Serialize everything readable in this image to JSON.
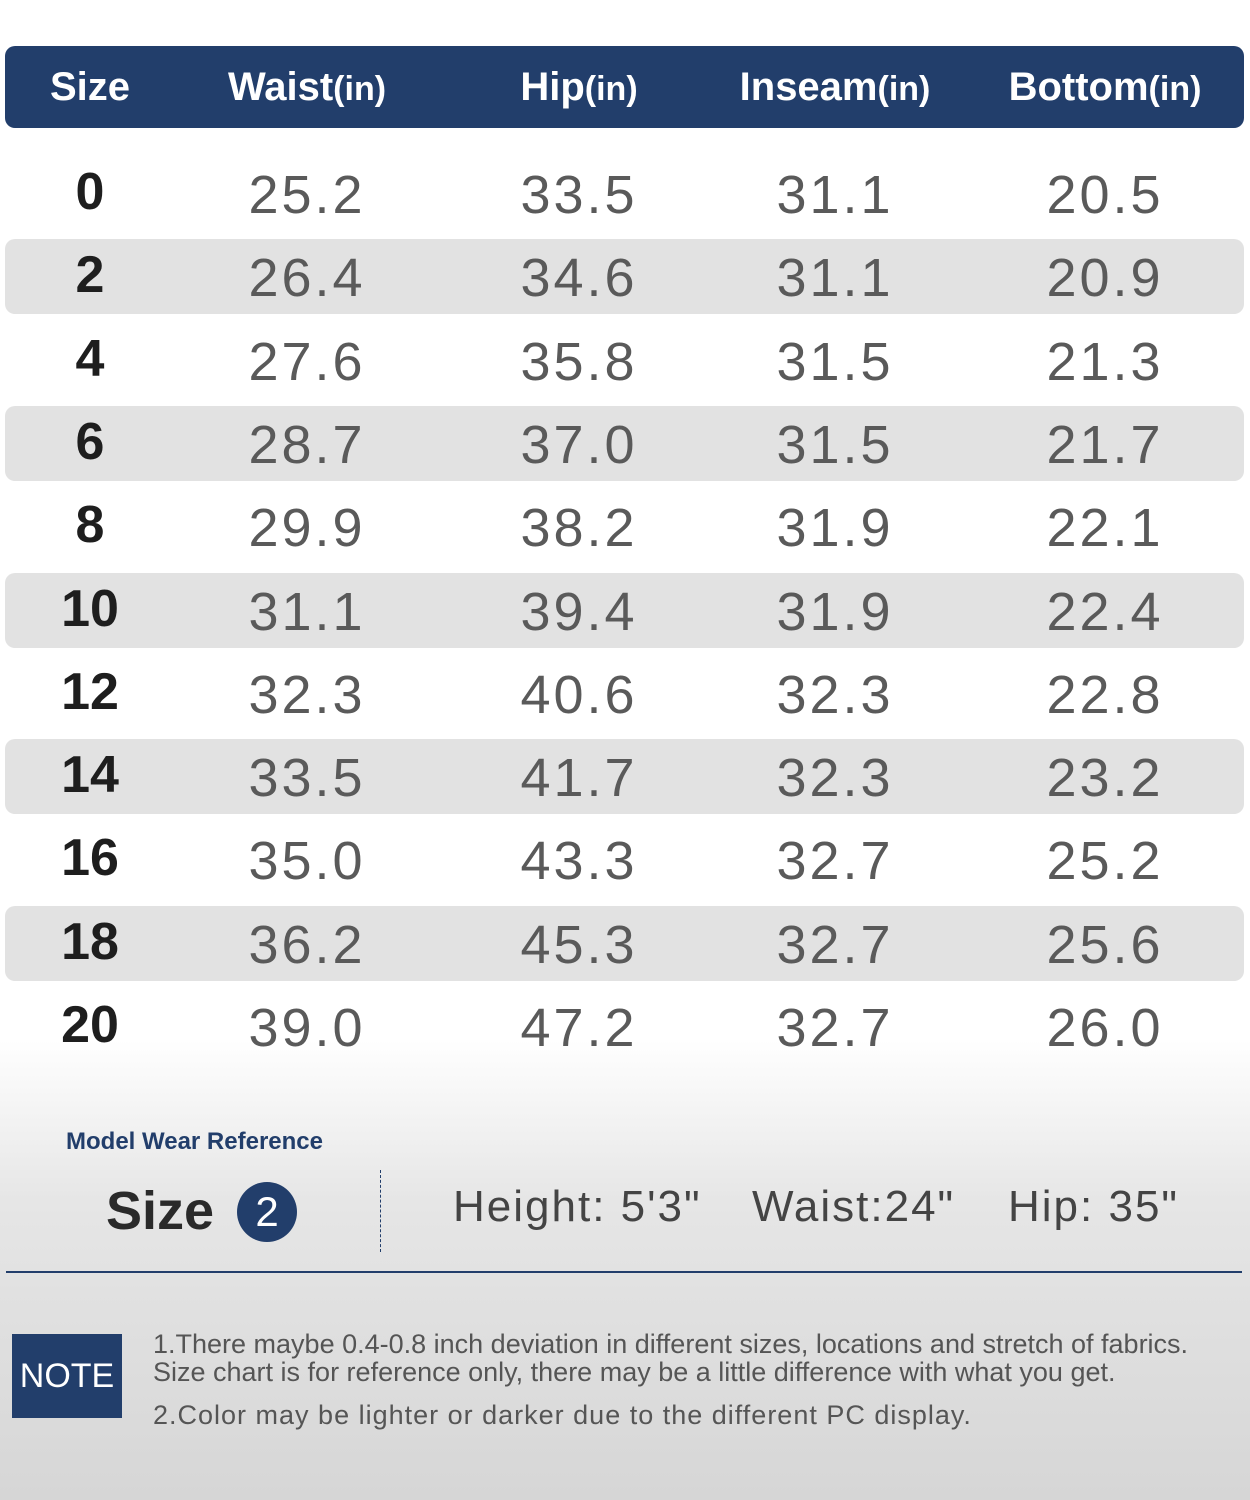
{
  "table": {
    "header": [
      {
        "label": "Size"
      },
      {
        "label": "Waist",
        "unit": "(in)"
      },
      {
        "label": "Hip",
        "unit": "(in)"
      },
      {
        "label": "Inseam",
        "unit": "(in)"
      },
      {
        "label": "Bottom",
        "unit": "(in)"
      }
    ],
    "rows": [
      [
        "0",
        "25.2",
        "33.5",
        "31.1",
        "20.5"
      ],
      [
        "2",
        "26.4",
        "34.6",
        "31.1",
        "20.9"
      ],
      [
        "4",
        "27.6",
        "35.8",
        "31.5",
        "21.3"
      ],
      [
        "6",
        "28.7",
        "37.0",
        "31.5",
        "21.7"
      ],
      [
        "8",
        "29.9",
        "38.2",
        "31.9",
        "22.1"
      ],
      [
        "10",
        "31.1",
        "39.4",
        "31.9",
        "22.4"
      ],
      [
        "12",
        "32.3",
        "40.6",
        "32.3",
        "22.8"
      ],
      [
        "14",
        "33.5",
        "41.7",
        "32.3",
        "23.2"
      ],
      [
        "16",
        "35.0",
        "43.3",
        "32.7",
        "25.2"
      ],
      [
        "18",
        "36.2",
        "45.3",
        "32.7",
        "25.6"
      ],
      [
        "20",
        "39.0",
        "47.2",
        "32.7",
        "26.0"
      ]
    ]
  },
  "model": {
    "title": "Model Wear Reference",
    "size_label": "Size",
    "size_value": "2",
    "measurements": [
      "Height: 5'3\"",
      "Waist:24\"",
      "Hip: 35\""
    ]
  },
  "note": {
    "badge": "NOTE",
    "lines": [
      "1.There maybe 0.4-0.8 inch deviation in different sizes, locations and stretch of fabrics.",
      "Size chart is for reference only, there may be a little difference with what you get.",
      "2.Color may be lighter or darker due to the different PC display."
    ]
  }
}
